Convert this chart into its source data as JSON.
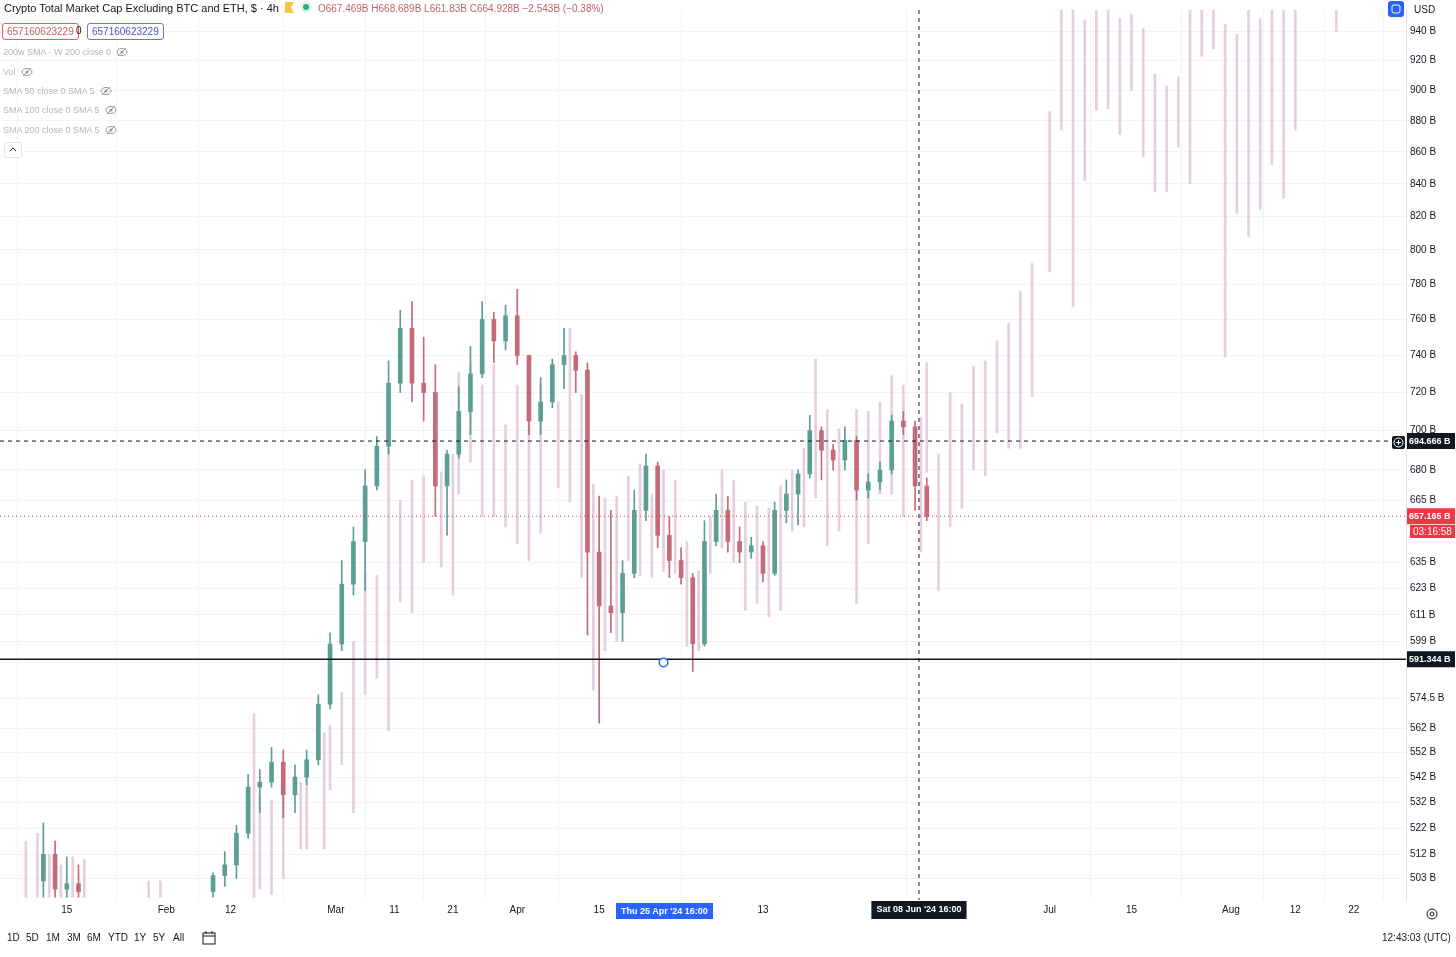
{
  "chart_data": {
    "type": "candlestick",
    "title": "Crypto Total Market Cap Excluding BTC and ETH, $ · 4h",
    "subtitle": "O667.469B H668.689B L661.83B C664.928B −2.543B (−0.38%)",
    "x": [
      "2024-01-11",
      "2024-01-13",
      "2024-01-15",
      "2024-01-17",
      "2024-02-09",
      "2024-02-11",
      "2024-02-13",
      "2024-02-15",
      "2024-02-17",
      "2024-02-19",
      "2024-02-21",
      "2024-02-23",
      "2024-02-25",
      "2024-02-27",
      "2024-02-29",
      "2024-03-02",
      "2024-03-04",
      "2024-03-06",
      "2024-03-08",
      "2024-03-10",
      "2024-03-12",
      "2024-03-14",
      "2024-03-16",
      "2024-03-18",
      "2024-03-20",
      "2024-03-22",
      "2024-03-24",
      "2024-03-26",
      "2024-03-28",
      "2024-03-30",
      "2024-04-01",
      "2024-04-03",
      "2024-04-05",
      "2024-04-07",
      "2024-04-09",
      "2024-04-11",
      "2024-04-13",
      "2024-04-15",
      "2024-04-17",
      "2024-04-19",
      "2024-04-21",
      "2024-04-23",
      "2024-04-25",
      "2024-04-27",
      "2024-04-29",
      "2024-05-01",
      "2024-05-03",
      "2024-05-05",
      "2024-05-07",
      "2024-05-09",
      "2024-05-11",
      "2024-05-13",
      "2024-05-15",
      "2024-05-17",
      "2024-05-19",
      "2024-05-21",
      "2024-05-23",
      "2024-05-25",
      "2024-05-27",
      "2024-05-29",
      "2024-05-31",
      "2024-06-02",
      "2024-06-04",
      "2024-06-06",
      "2024-06-08",
      "2024-06-10"
    ],
    "ohlc": [
      [
        502,
        524,
        496,
        512
      ],
      [
        512,
        517,
        496,
        499
      ],
      [
        499,
        511,
        496,
        501
      ],
      [
        501,
        508,
        496,
        498
      ],
      [
        498,
        505,
        496,
        504
      ],
      [
        504,
        513,
        500,
        508
      ],
      [
        508,
        523,
        503,
        520
      ],
      [
        520,
        543,
        518,
        538
      ],
      [
        538,
        545,
        528,
        540
      ],
      [
        540,
        554,
        538,
        548
      ],
      [
        548,
        553,
        526,
        535
      ],
      [
        535,
        547,
        528,
        542
      ],
      [
        542,
        553,
        539,
        549
      ],
      [
        549,
        576,
        547,
        572
      ],
      [
        572,
        603,
        570,
        598
      ],
      [
        598,
        636,
        595,
        625
      ],
      [
        625,
        652,
        620,
        645
      ],
      [
        645,
        680,
        622,
        672
      ],
      [
        672,
        697,
        670,
        692
      ],
      [
        692,
        737,
        688,
        725
      ],
      [
        725,
        765,
        720,
        755
      ],
      [
        755,
        770,
        715,
        725
      ],
      [
        725,
        750,
        705,
        720
      ],
      [
        720,
        735,
        657,
        672
      ],
      [
        672,
        690,
        648,
        688
      ],
      [
        688,
        723,
        686,
        710
      ],
      [
        710,
        745,
        698,
        730
      ],
      [
        730,
        770,
        728,
        760
      ],
      [
        760,
        764,
        736,
        748
      ],
      [
        748,
        768,
        743,
        762
      ],
      [
        762,
        777,
        735,
        740
      ],
      [
        740,
        740,
        698,
        705
      ],
      [
        705,
        728,
        698,
        715
      ],
      [
        715,
        738,
        712,
        735
      ],
      [
        735,
        755,
        722,
        740
      ],
      [
        740,
        742,
        720,
        732
      ],
      [
        732,
        736,
        602,
        640
      ],
      [
        640,
        667,
        564,
        615
      ],
      [
        615,
        660,
        603,
        612
      ],
      [
        612,
        636,
        599,
        630
      ],
      [
        630,
        670,
        628,
        660
      ],
      [
        660,
        688,
        655,
        682
      ],
      [
        682,
        684,
        642,
        648
      ],
      [
        648,
        657,
        628,
        636
      ],
      [
        636,
        642,
        625,
        628
      ],
      [
        628,
        630,
        586,
        598
      ],
      [
        598,
        655,
        597,
        645
      ],
      [
        645,
        668,
        643,
        660
      ],
      [
        660,
        667,
        640,
        645
      ],
      [
        645,
        652,
        635,
        640
      ],
      [
        640,
        647,
        637,
        643
      ],
      [
        643,
        645,
        626,
        630
      ],
      [
        630,
        664,
        629,
        660
      ],
      [
        660,
        675,
        654,
        668
      ],
      [
        668,
        680,
        653,
        678
      ],
      [
        678,
        708,
        676,
        700
      ],
      [
        700,
        702,
        675,
        690
      ],
      [
        690,
        693,
        680,
        685
      ],
      [
        685,
        702,
        680,
        695
      ],
      [
        695,
        697,
        665,
        670
      ],
      [
        670,
        678,
        666,
        674
      ],
      [
        674,
        684,
        670,
        680
      ],
      [
        680,
        708,
        678,
        705
      ],
      [
        705,
        710,
        698,
        702
      ],
      [
        702,
        705,
        660,
        672
      ],
      [
        672,
        676,
        655,
        657
      ]
    ],
    "colors": [
      "#5b9e94",
      "#c46a78",
      "#5b9e94",
      "#c46a78",
      "#5b9e94",
      "#5b9e94",
      "#5b9e94",
      "#5b9e94",
      "#5b9e94",
      "#5b9e94",
      "#c46a78",
      "#5b9e94",
      "#5b9e94",
      "#5b9e94",
      "#5b9e94",
      "#5b9e94",
      "#5b9e94",
      "#5b9e94",
      "#5b9e94",
      "#5b9e94",
      "#5b9e94",
      "#c46a78",
      "#c46a78",
      "#c46a78",
      "#5b9e94",
      "#5b9e94",
      "#5b9e94",
      "#5b9e94",
      "#c46a78",
      "#5b9e94",
      "#c46a78",
      "#c46a78",
      "#5b9e94",
      "#5b9e94",
      "#5b9e94",
      "#c46a78",
      "#c46a78",
      "#c46a78",
      "#c46a78",
      "#5b9e94",
      "#5b9e94",
      "#5b9e94",
      "#c46a78",
      "#c46a78",
      "#c46a78",
      "#c46a78",
      "#5b9e94",
      "#5b9e94",
      "#c46a78",
      "#c46a78",
      "#5b9e94",
      "#c46a78",
      "#5b9e94",
      "#5b9e94",
      "#5b9e94",
      "#5b9e94",
      "#c46a78",
      "#c46a78",
      "#5b9e94",
      "#c46a78",
      "#5b9e94",
      "#5b9e94",
      "#5b9e94",
      "#c46a78",
      "#c46a78",
      "#c46a78"
    ],
    "series": [
      {
        "type": "bar",
        "color": "#e6cde0",
        "x": [
          "2024-01-08",
          "2024-01-10",
          "2024-01-12",
          "2024-01-14",
          "2024-01-16",
          "2024-01-18",
          "2024-01-29",
          "2024-01-31",
          "2024-02-16",
          "2024-02-17",
          "2024-02-19",
          "2024-02-21",
          "2024-02-24",
          "2024-02-25",
          "2024-02-28",
          "2024-02-29",
          "2024-03-02",
          "2024-03-04",
          "2024-03-06",
          "2024-03-08",
          "2024-03-10",
          "2024-03-12",
          "2024-03-14",
          "2024-03-16",
          "2024-03-19",
          "2024-03-21",
          "2024-03-22",
          "2024-03-24",
          "2024-03-26",
          "2024-03-28",
          "2024-03-30",
          "2024-04-01",
          "2024-04-03",
          "2024-04-05",
          "2024-04-08",
          "2024-04-10",
          "2024-04-12",
          "2024-04-14",
          "2024-04-16",
          "2024-04-18",
          "2024-04-20",
          "2024-04-22",
          "2024-04-24",
          "2024-04-26",
          "2024-04-28",
          "2024-04-30",
          "2024-05-02",
          "2024-05-04",
          "2024-05-06",
          "2024-05-08",
          "2024-05-10",
          "2024-05-12",
          "2024-05-14",
          "2024-05-16",
          "2024-05-18",
          "2024-05-20",
          "2024-05-22",
          "2024-05-24",
          "2024-05-26",
          "2024-05-29",
          "2024-05-31",
          "2024-06-02",
          "2024-06-04",
          "2024-06-06",
          "2024-06-09",
          "2024-06-10",
          "2024-06-12",
          "2024-06-14",
          "2024-06-16",
          "2024-06-18",
          "2024-06-20",
          "2024-06-22",
          "2024-06-24",
          "2024-06-26",
          "2024-06-28",
          "2024-07-01",
          "2024-07-03",
          "2024-07-05",
          "2024-07-07",
          "2024-07-09",
          "2024-07-11",
          "2024-07-13",
          "2024-07-15",
          "2024-07-17",
          "2024-07-19",
          "2024-07-21",
          "2024-07-23",
          "2024-07-25",
          "2024-07-27",
          "2024-07-29",
          "2024-07-31",
          "2024-08-02",
          "2024-08-04",
          "2024-08-06",
          "2024-08-08",
          "2024-08-10",
          "2024-08-12",
          "2024-08-19"
        ],
        "base": [
          496,
          496,
          496,
          496,
          496,
          496,
          496,
          496,
          496,
          499,
          497,
          503,
          514,
          514,
          514,
          537,
          547,
          528,
          576,
          583,
          561,
          617,
          612,
          635,
          633,
          620,
          668,
          684,
          657,
          657,
          652,
          644,
          636,
          649,
          671,
          664,
          628,
          578,
          595,
          599,
          636,
          629,
          628,
          631,
          630,
          597,
          595,
          630,
          642,
          635,
          613,
          616,
          610,
          613,
          650,
          652,
          666,
          643,
          650,
          616,
          644,
          668,
          668,
          657,
          640,
          679,
          622,
          652,
          661,
          680,
          677,
          699,
          691,
          691,
          718,
          787,
          874,
          767,
          842,
          887,
          888,
          871,
          900,
          857,
          835,
          835,
          863,
          840,
          923,
          928,
          739,
          822,
          808,
          824,
          852,
          831,
          874,
          940
        ],
        "values": [
          21,
          24,
          16,
          12,
          15,
          14,
          6,
          6,
          72,
          36,
          36,
          32,
          26,
          29,
          46,
          26,
          30,
          71,
          55,
          46,
          130,
          48,
          63,
          42,
          46,
          68,
          63,
          51,
          67,
          78,
          51,
          80,
          71,
          75,
          44,
          91,
          91,
          95,
          71,
          68,
          41,
          54,
          40,
          49,
          45,
          48,
          36,
          27,
          38,
          40,
          51,
          46,
          51,
          59,
          30,
          39,
          72,
          68,
          51,
          95,
          66,
          47,
          61,
          67,
          67,
          57,
          66,
          68,
          53,
          54,
          60,
          49,
          67,
          85,
          74,
          99,
          81,
          188,
          106,
          68,
          67,
          78,
          52,
          85,
          76,
          68,
          46,
          115,
          32,
          27,
          206,
          116,
          147,
          125,
          103,
          124,
          81,
          15
        ]
      }
    ],
    "xlim": [
      "2024-01-03T14:00",
      "2024-08-30T22:00"
    ],
    "xticks": [
      {
        "value": "2024-01-15",
        "label": "15"
      },
      {
        "value": "2024-02-01",
        "label": "Feb"
      },
      {
        "value": "2024-02-12",
        "label": "12"
      },
      {
        "value": "2024-03-01",
        "label": "Mar"
      },
      {
        "value": "2024-03-11",
        "label": "11"
      },
      {
        "value": "2024-03-21",
        "label": "21"
      },
      {
        "value": "2024-04-01",
        "label": "Apr"
      },
      {
        "value": "2024-04-15",
        "label": "15"
      },
      {
        "value": "2024-05-13",
        "label": "13"
      },
      {
        "value": "2024-07-01",
        "label": "Jul"
      },
      {
        "value": "2024-07-15",
        "label": "15"
      },
      {
        "value": "2024-08-01",
        "label": "Aug"
      },
      {
        "value": "2024-08-12",
        "label": "12"
      },
      {
        "value": "2024-08-22",
        "label": "22"
      }
    ],
    "ylim": [
      495,
      955
    ],
    "log": true,
    "yticks": [
      {
        "value": 940,
        "label": "940 B"
      },
      {
        "value": 920,
        "label": "920 B"
      },
      {
        "value": 900,
        "label": "900 B"
      },
      {
        "value": 880,
        "label": "880 B"
      },
      {
        "value": 860,
        "label": "860 B"
      },
      {
        "value": 840,
        "label": "840 B"
      },
      {
        "value": 820,
        "label": "820 B"
      },
      {
        "value": 800,
        "label": "800 B"
      },
      {
        "value": 780,
        "label": "780 B"
      },
      {
        "value": 760,
        "label": "760 B"
      },
      {
        "value": 740,
        "label": "740 B"
      },
      {
        "value": 720,
        "label": "720 B"
      },
      {
        "value": 700,
        "label": "700 B"
      },
      {
        "value": 680,
        "label": "680 B"
      },
      {
        "value": 665,
        "label": "665 B"
      },
      {
        "value": 635,
        "label": "635 B"
      },
      {
        "value": 623,
        "label": "623 B"
      },
      {
        "value": 611,
        "label": "611 B"
      },
      {
        "value": 599,
        "label": "599 B"
      },
      {
        "value": 574.5,
        "label": "574.5 B"
      },
      {
        "value": 562,
        "label": "562 B"
      },
      {
        "value": 552,
        "label": "552 B"
      },
      {
        "value": 542,
        "label": "542 B"
      },
      {
        "value": 532,
        "label": "532 B"
      },
      {
        "value": 522,
        "label": "522 B"
      },
      {
        "value": 512,
        "label": "512 B"
      },
      {
        "value": 503,
        "label": "503 B"
      }
    ],
    "grid": true,
    "ref_lines": [
      {
        "axis": "y",
        "value": 694.666,
        "label": "694.666 B",
        "color": "#131722",
        "line_style": "dashed"
      },
      {
        "axis": "y",
        "value": 657.165,
        "label": "657.165 B",
        "color": "#f23645",
        "line_style": "dotted"
      },
      {
        "axis": "y",
        "value": 591.344,
        "label": "591.344 B",
        "color": "#131722",
        "line_style": "solid"
      },
      {
        "axis": "x",
        "value": "2024-06-08T16:00",
        "label": "Sat 08 Jun '24 16:00",
        "color": "#131722",
        "line_style": "dashed"
      }
    ],
    "annotations": [
      "Thu 25 Apr '24 16:00",
      "657160623229",
      "0",
      "657160623229",
      "200w SMA · W 200 close 0",
      "Vol",
      "SMA 50 close 0 SMA 5",
      "SMA 100 close 0 SMA 5",
      "SMA 200 close 0 SMA 5",
      "USD",
      "1D",
      "5D",
      "1M",
      "3M",
      "6M",
      "YTD",
      "1Y",
      "5Y",
      "All",
      "12:43:03 (UTC)",
      "03:16:58"
    ]
  }
}
